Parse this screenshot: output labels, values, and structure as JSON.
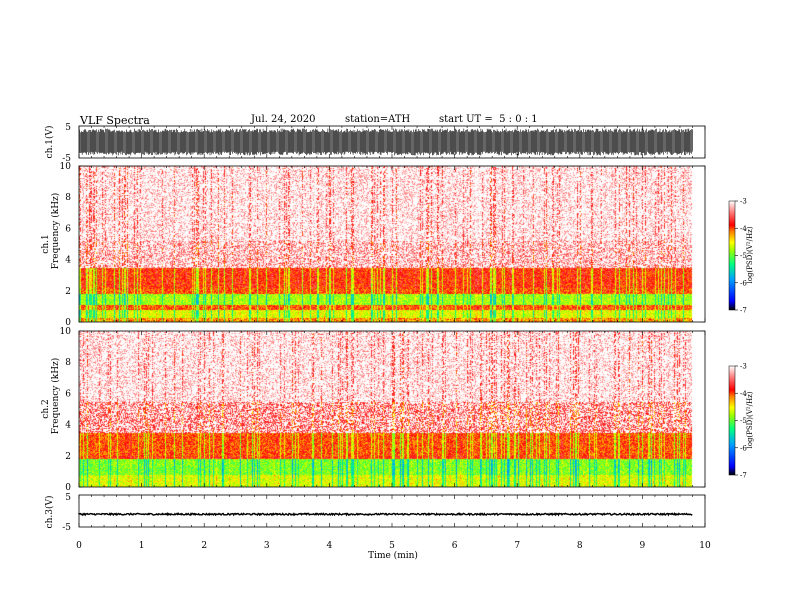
{
  "header": {
    "title": "VLF Spectra",
    "date": "Jul. 24, 2020",
    "station": "station=ATH",
    "start": "start UT =  5 : 0 : 1"
  },
  "colors": {
    "colormap": [
      "#000000",
      "#0000ff",
      "#00a0ff",
      "#00ff80",
      "#a0ff00",
      "#ffff00",
      "#ff8000",
      "#ff0000",
      "#ff8080",
      "#ffffff"
    ],
    "trace": "#000000"
  },
  "chart_data": [
    {
      "type": "line",
      "name": "ch1-waveform",
      "ylabel": "ch.1(V)",
      "ylim": [
        -5,
        5
      ],
      "yticks": [
        "5",
        "-5"
      ],
      "xlim": [
        0,
        10
      ],
      "data_end_min": 9.8,
      "amplitude_range_V": [
        -4.2,
        4.2
      ]
    },
    {
      "type": "heatmap",
      "name": "ch1-spectrogram",
      "ylabel": "ch.1\nFrequency (kHz)",
      "ylabel_lines": [
        "ch.1",
        "Frequency (kHz)"
      ],
      "ylim": [
        0,
        10
      ],
      "yticks": [
        "0",
        "2",
        "4",
        "6",
        "8",
        "10"
      ],
      "xlim": [
        0,
        10
      ],
      "data_end_min": 9.8,
      "colorbar": {
        "label": "log(PSD)(V²/Hz)",
        "ticks": [
          "-3",
          "-4",
          "-5",
          "-6",
          "-7"
        ],
        "range": [
          -7,
          -3
        ]
      },
      "bands_log_psd": [
        {
          "f": [
            0.0,
            0.3
          ],
          "level": -4.2
        },
        {
          "f": [
            0.3,
            0.8
          ],
          "level": -4.6
        },
        {
          "f": [
            0.8,
            1.1
          ],
          "level": -4.0
        },
        {
          "f": [
            1.1,
            1.8
          ],
          "level": -4.8
        },
        {
          "f": [
            1.8,
            2.2
          ],
          "level": -4.0
        },
        {
          "f": [
            2.2,
            3.5
          ],
          "level": -3.9
        },
        {
          "f": [
            3.5,
            5.2
          ],
          "level": -3.4
        },
        {
          "f": [
            5.2,
            10.0
          ],
          "level": -3.2
        }
      ]
    },
    {
      "type": "heatmap",
      "name": "ch2-spectrogram",
      "ylabel": "ch.2\nFrequency (kHz)",
      "ylabel_lines": [
        "ch.2",
        "Frequency (kHz)"
      ],
      "ylim": [
        0,
        10
      ],
      "yticks": [
        "0",
        "2",
        "4",
        "6",
        "8",
        "10"
      ],
      "xlim": [
        0,
        10
      ],
      "data_end_min": 9.8,
      "colorbar": {
        "label": "log(PSD)(V²/Hz)",
        "ticks": [
          "-3",
          "-4",
          "-5",
          "-6",
          "-7"
        ],
        "range": [
          -7,
          -3
        ]
      },
      "bands_log_psd": [
        {
          "f": [
            0.0,
            0.8
          ],
          "level": -4.6
        },
        {
          "f": [
            0.8,
            1.8
          ],
          "level": -4.9
        },
        {
          "f": [
            1.8,
            2.0
          ],
          "level": -3.9
        },
        {
          "f": [
            2.0,
            3.5
          ],
          "level": -4.0
        },
        {
          "f": [
            3.5,
            5.5
          ],
          "level": -3.6
        },
        {
          "f": [
            5.5,
            10.0
          ],
          "level": -3.2
        }
      ]
    },
    {
      "type": "line",
      "name": "ch3-waveform",
      "ylabel": "ch.3(V)",
      "ylim": [
        -5,
        5
      ],
      "yticks": [
        "5",
        "0",
        "-5"
      ],
      "xlim": [
        0,
        10
      ],
      "data_end_min": 9.8,
      "baseline_V": -1.0,
      "amplitude_range_V": [
        -0.25,
        0.25
      ],
      "xlabel": "Time (min)",
      "xticks": [
        "0",
        "1",
        "2",
        "3",
        "4",
        "5",
        "6",
        "7",
        "8",
        "9",
        "10"
      ]
    }
  ]
}
